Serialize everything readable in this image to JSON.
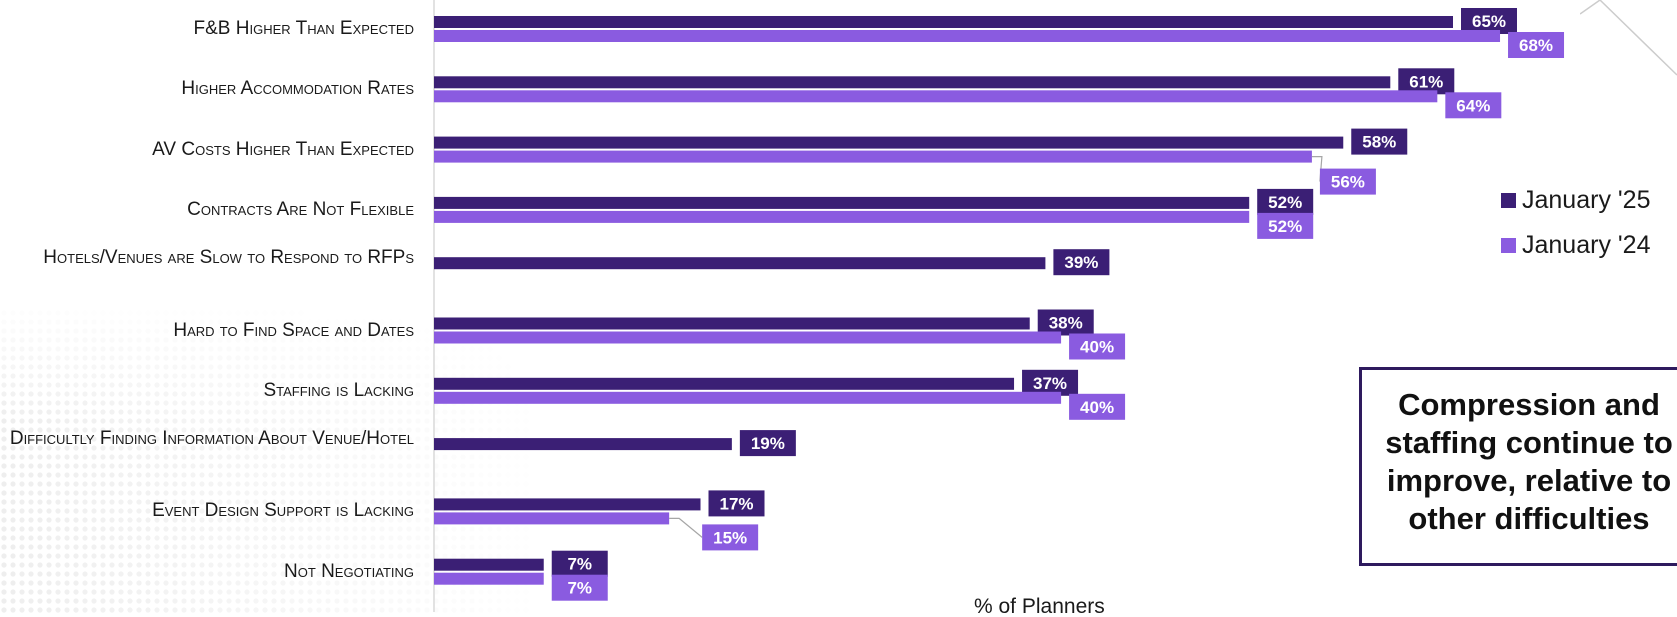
{
  "chart_data": {
    "type": "bar",
    "orientation": "horizontal",
    "categories": [
      "F&B Higher Than Expected",
      "Higher Accommodation Rates",
      "AV Costs Higher Than Expected",
      "Contracts Are Not Flexible",
      "Hotels/Venues are Slow to Respond to RFPs",
      "Hard to Find Space and Dates",
      "Staffing is Lacking",
      "Difficultly Finding Information About Venue/Hotel",
      "Event Design Support is Lacking",
      "Not Negotiating"
    ],
    "series": [
      {
        "name": "January '25",
        "color": "#3b1f75",
        "values": [
          65,
          61,
          58,
          52,
          39,
          38,
          37,
          19,
          17,
          7
        ]
      },
      {
        "name": "January '24",
        "color": "#8a5be0",
        "values": [
          68,
          64,
          56,
          52,
          null,
          40,
          40,
          null,
          15,
          7
        ]
      }
    ],
    "data_labels": [
      [
        "65%",
        "61%",
        "58%",
        "52%",
        "39%",
        "38%",
        "37%",
        "19%",
        "17%",
        "7%"
      ],
      [
        "68%",
        "64%",
        "56%",
        "52%",
        "",
        "40%",
        "40%",
        "",
        "15%",
        "7%"
      ]
    ],
    "xlabel": "% of Planners",
    "ylabel": "",
    "xlim": [
      0,
      75
    ],
    "grid": false,
    "legend_position": "right"
  },
  "callout": {
    "text": "Compression and\nstaffing continue to\nimprove, relative to\nother difficulties"
  }
}
